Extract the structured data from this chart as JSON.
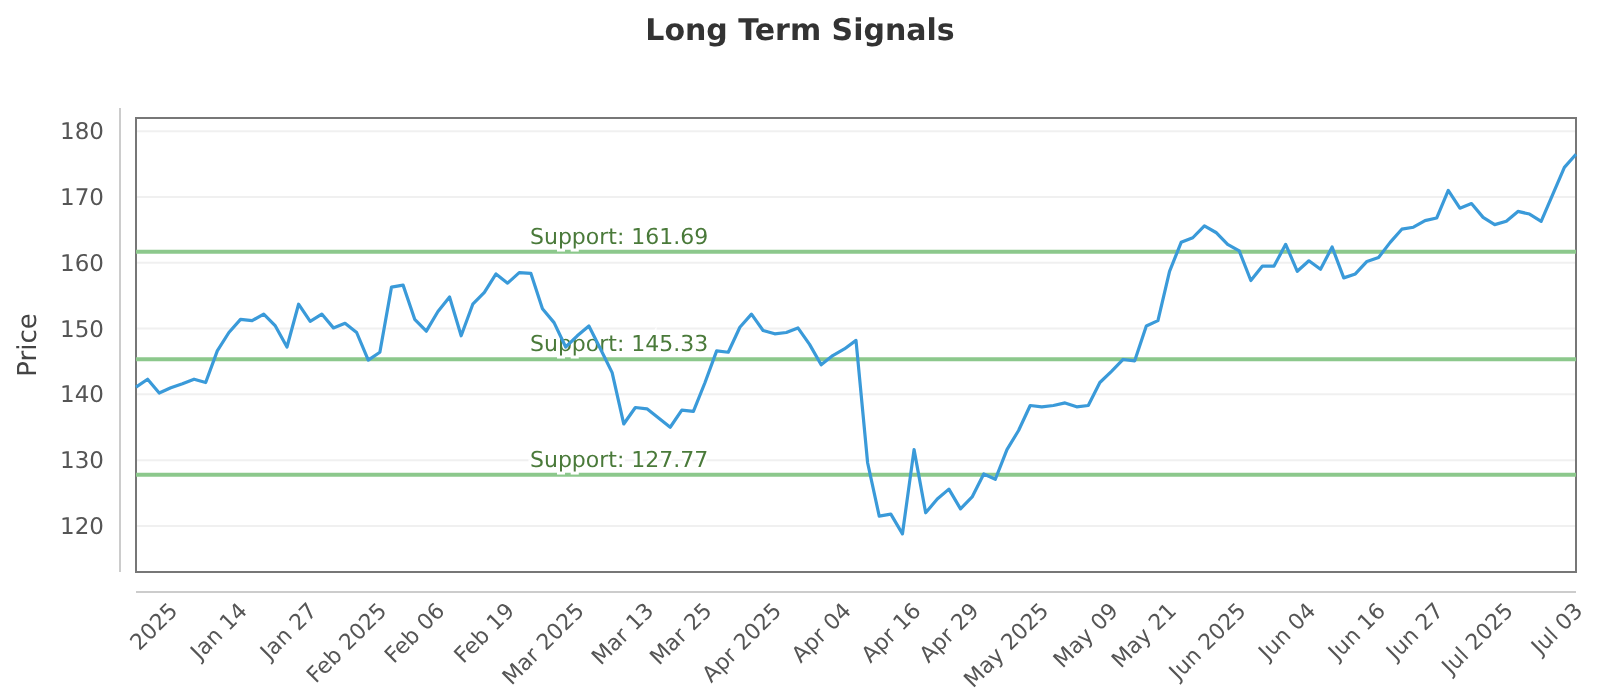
{
  "chart_data": {
    "type": "line",
    "title": "Long Term Signals",
    "ylabel": "Price",
    "categories": [
      null,
      null,
      null,
      "2025",
      null,
      null,
      null,
      null,
      null,
      "Jan 14",
      null,
      null,
      null,
      null,
      null,
      "Jan 27",
      null,
      null,
      null,
      null,
      null,
      "Feb 2025",
      null,
      null,
      null,
      null,
      "Feb 06",
      null,
      null,
      null,
      null,
      null,
      "Feb 19",
      null,
      null,
      null,
      null,
      null,
      "Mar 2025",
      null,
      null,
      null,
      null,
      null,
      "Mar 13",
      null,
      null,
      null,
      null,
      "Mar 25",
      null,
      null,
      null,
      null,
      null,
      "Apr 2025",
      null,
      null,
      null,
      null,
      null,
      "Apr 04",
      null,
      null,
      null,
      null,
      null,
      "Apr 16",
      null,
      null,
      null,
      null,
      "Apr 29",
      null,
      null,
      null,
      null,
      null,
      "May 2025",
      null,
      null,
      null,
      null,
      null,
      "May 09",
      null,
      null,
      null,
      null,
      "May 21",
      null,
      null,
      null,
      null,
      null,
      "Jun 2025",
      null,
      null,
      null,
      null,
      null,
      "Jun 04",
      null,
      null,
      null,
      null,
      null,
      "Jun 16",
      null,
      null,
      null,
      null,
      "Jun 27",
      null,
      null,
      null,
      null,
      null,
      "Jul 2025",
      null,
      null,
      null,
      null,
      null,
      "Jul 03"
    ],
    "series": [
      {
        "color": "#3a9ad9",
        "values": [
          141.1,
          142.3,
          140.2,
          141,
          141.6,
          142.3,
          141.8,
          146.6,
          149.4,
          151.4,
          151.2,
          152.2,
          150.4,
          147.2,
          153.7,
          151.1,
          152.2,
          150.1,
          150.8,
          149.4,
          145.2,
          146.4,
          156.3,
          156.6,
          151.4,
          149.6,
          152.6,
          154.8,
          148.9,
          153.7,
          155.5,
          158.3,
          156.9,
          158.5,
          158.4,
          153,
          150.9,
          147.2,
          148.9,
          150.4,
          146.9,
          143.3,
          135.5,
          138,
          137.8,
          136.4,
          135,
          137.6,
          137.4,
          141.8,
          146.6,
          146.4,
          150.2,
          152.2,
          149.7,
          149.2,
          149.4,
          150.1,
          147.6,
          144.5,
          145.9,
          146.9,
          148.2,
          129.6,
          121.5,
          121.8,
          118.8,
          131.6,
          122,
          124.1,
          125.6,
          122.6,
          124.4,
          127.9,
          127.1,
          131.6,
          134.5,
          138.3,
          138.1,
          138.3,
          138.7,
          138.1,
          138.3,
          141.8,
          143.5,
          145.3,
          145.1,
          150.4,
          151.2,
          158.7,
          163.1,
          163.8,
          165.6,
          164.6,
          162.8,
          161.8,
          157.3,
          159.5,
          159.5,
          162.8,
          158.7,
          160.3,
          159,
          162.4,
          157.7,
          158.3,
          160.2,
          160.8,
          163.1,
          165.1,
          165.4,
          166.4,
          166.8,
          171,
          168.3,
          169,
          166.9,
          165.8,
          166.3,
          167.8,
          167.4,
          166.3,
          170.4,
          174.5,
          176.5
        ]
      }
    ],
    "ylim": [
      113,
      182
    ],
    "yticks": [
      120,
      130,
      140,
      150,
      160,
      170,
      180
    ],
    "grid": "y",
    "marker": "none",
    "line_style": "solid",
    "ref_lines": [
      {
        "axis": "y",
        "value": 161.69,
        "label": "Support: 161.69",
        "color": "#8cc88c"
      },
      {
        "axis": "y",
        "value": 145.33,
        "label": "Support: 145.33",
        "color": "#8cc88c"
      },
      {
        "axis": "y",
        "value": 127.77,
        "label": "Support: 127.77",
        "color": "#8cc88c"
      }
    ]
  }
}
